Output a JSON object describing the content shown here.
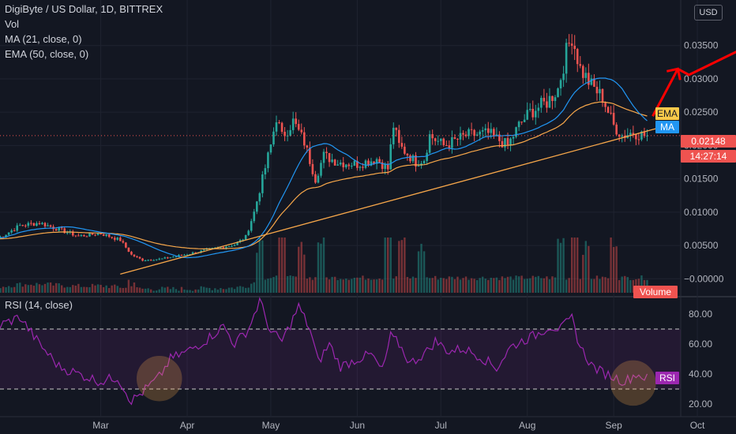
{
  "header": {
    "symbol_line": "DigiByte / US Dollar, 1D, BITTREX",
    "vol_label": "Vol",
    "ma_label": "MA (21, close, 0)",
    "ema_label": "EMA (50, close, 0)"
  },
  "currency_button": "USD",
  "rsi_title": "RSI (14, close)",
  "badges": {
    "ema": "EMA",
    "ma": "MA",
    "price": "0.02148",
    "countdown": "14:27:14",
    "volume": "Volume",
    "rsi": "RSI"
  },
  "colors": {
    "background": "#131722",
    "up_candle": "#26a69a",
    "down_candle": "#ef5350",
    "ma_line": "#2196f3",
    "ema_line": "#f7a74a",
    "rsi_line": "#9c27b0",
    "trendline": "#f7a74a",
    "arrow": "#ff0000",
    "price_badge": "#ef5350",
    "ema_badge": "#f7c94a",
    "ma_badge": "#2196f3",
    "rsi_badge": "#9c27b0"
  },
  "chart_data": [
    {
      "type": "candlestick",
      "name_printed": "DigiByte / US Dollar, 1D, BITTREX",
      "ylim": [
        -0.0005,
        0.0398
      ],
      "y_ticks": [
        "0.03500",
        "0.03000",
        "0.02500",
        "0.02000",
        "0.01500",
        "0.01000",
        "0.00500",
        "−0.00000"
      ],
      "y_tick_values": [
        0.035,
        0.03,
        0.025,
        0.02,
        0.015,
        0.01,
        0.005,
        0.0
      ],
      "x_ticks": [
        "Mar",
        "Apr",
        "May",
        "Jun",
        "Jul",
        "Aug",
        "Sep",
        "Oct"
      ],
      "x_tick_dates": [
        "2020-03-01",
        "2020-04-01",
        "2020-05-01",
        "2020-06-01",
        "2020-07-01",
        "2020-08-01",
        "2020-09-01",
        "2020-10-01"
      ],
      "last_price": 0.02148,
      "trendline": [
        [
          "2020-03-08",
          0.0007
        ],
        [
          "2020-09-22",
          0.0232
        ]
      ],
      "arrow_path": [
        [
          "2020-09-15",
          0.0244
        ],
        [
          "2020-09-24",
          0.0315
        ],
        [
          "2020-09-28",
          0.0306
        ],
        [
          "2020-10-23",
          0.0357
        ]
      ],
      "close_anchors": [
        [
          "2020-01-24",
          0.006
        ],
        [
          "2020-02-01",
          0.008
        ],
        [
          "2020-02-08",
          0.0084
        ],
        [
          "2020-02-15",
          0.0074
        ],
        [
          "2020-02-22",
          0.0064
        ],
        [
          "2020-03-01",
          0.0068
        ],
        [
          "2020-03-08",
          0.0058
        ],
        [
          "2020-03-12",
          0.0036
        ],
        [
          "2020-03-16",
          0.0028
        ],
        [
          "2020-03-23",
          0.003
        ],
        [
          "2020-04-01",
          0.0037
        ],
        [
          "2020-04-10",
          0.0045
        ],
        [
          "2020-04-18",
          0.0051
        ],
        [
          "2020-04-22",
          0.0063
        ],
        [
          "2020-04-25",
          0.01
        ],
        [
          "2020-04-28",
          0.015
        ],
        [
          "2020-05-01",
          0.02
        ],
        [
          "2020-05-03",
          0.0243
        ],
        [
          "2020-05-05",
          0.0213
        ],
        [
          "2020-05-09",
          0.0236
        ],
        [
          "2020-05-13",
          0.0205
        ],
        [
          "2020-05-17",
          0.015
        ],
        [
          "2020-05-20",
          0.0185
        ],
        [
          "2020-05-25",
          0.0175
        ],
        [
          "2020-06-01",
          0.0172
        ],
        [
          "2020-06-08",
          0.018
        ],
        [
          "2020-06-12",
          0.0165
        ],
        [
          "2020-06-14",
          0.023
        ],
        [
          "2020-06-16",
          0.02
        ],
        [
          "2020-06-22",
          0.0175
        ],
        [
          "2020-06-25",
          0.018
        ],
        [
          "2020-06-27",
          0.0215
        ],
        [
          "2020-07-02",
          0.02
        ],
        [
          "2020-07-05",
          0.0205
        ],
        [
          "2020-07-10",
          0.0215
        ],
        [
          "2020-07-18",
          0.0218
        ],
        [
          "2020-07-25",
          0.02
        ],
        [
          "2020-07-29",
          0.023
        ],
        [
          "2020-08-02",
          0.025
        ],
        [
          "2020-08-08",
          0.0265
        ],
        [
          "2020-08-12",
          0.0285
        ],
        [
          "2020-08-15",
          0.034
        ],
        [
          "2020-08-17",
          0.0365
        ],
        [
          "2020-08-20",
          0.0315
        ],
        [
          "2020-08-24",
          0.029
        ],
        [
          "2020-08-28",
          0.0272
        ],
        [
          "2020-09-01",
          0.023
        ],
        [
          "2020-09-04",
          0.0215
        ],
        [
          "2020-09-08",
          0.022
        ],
        [
          "2020-09-12",
          0.0215
        ],
        [
          "2020-09-13",
          0.02148
        ]
      ],
      "volume_range": "0 to 5.7× baseline; spike days ~ Mar 12, Apr 27–May 20, Jun 12–25, Aug 12–20, Sep 1"
    },
    {
      "type": "line",
      "title": "RSI (14, close)",
      "ylim": [
        17,
        92
      ],
      "y_ticks": [
        "80.00",
        "60.00",
        "40.00",
        "20.00"
      ],
      "y_tick_values": [
        80,
        60,
        40,
        20
      ],
      "bands": [
        30,
        70
      ],
      "highlight_circles": [
        [
          "2020-03-22",
          37
        ],
        [
          "2020-09-08",
          34
        ]
      ],
      "values_anchors": [
        [
          "2020-01-24",
          72
        ],
        [
          "2020-02-01",
          78
        ],
        [
          "2020-02-08",
          60
        ],
        [
          "2020-02-15",
          45
        ],
        [
          "2020-02-22",
          40
        ],
        [
          "2020-03-01",
          35
        ],
        [
          "2020-03-07",
          38
        ],
        [
          "2020-03-12",
          22
        ],
        [
          "2020-03-16",
          28
        ],
        [
          "2020-03-22",
          38
        ],
        [
          "2020-03-26",
          50
        ],
        [
          "2020-04-01",
          55
        ],
        [
          "2020-04-08",
          63
        ],
        [
          "2020-04-14",
          72
        ],
        [
          "2020-04-18",
          60
        ],
        [
          "2020-04-23",
          70
        ],
        [
          "2020-04-27",
          89
        ],
        [
          "2020-05-01",
          68
        ],
        [
          "2020-05-05",
          62
        ],
        [
          "2020-05-08",
          73
        ],
        [
          "2020-05-11",
          85
        ],
        [
          "2020-05-15",
          70
        ],
        [
          "2020-05-18",
          48
        ],
        [
          "2020-05-22",
          60
        ],
        [
          "2020-05-26",
          45
        ],
        [
          "2020-06-01",
          50
        ],
        [
          "2020-06-06",
          53
        ],
        [
          "2020-06-10",
          42
        ],
        [
          "2020-06-13",
          65
        ],
        [
          "2020-06-16",
          60
        ],
        [
          "2020-06-20",
          47
        ],
        [
          "2020-06-26",
          55
        ],
        [
          "2020-06-29",
          62
        ],
        [
          "2020-07-04",
          55
        ],
        [
          "2020-07-09",
          57
        ],
        [
          "2020-07-15",
          52
        ],
        [
          "2020-07-21",
          44
        ],
        [
          "2020-07-26",
          58
        ],
        [
          "2020-07-30",
          62
        ],
        [
          "2020-08-04",
          66
        ],
        [
          "2020-08-09",
          72
        ],
        [
          "2020-08-13",
          70
        ],
        [
          "2020-08-17",
          77
        ],
        [
          "2020-08-20",
          58
        ],
        [
          "2020-08-24",
          46
        ],
        [
          "2020-08-27",
          42
        ],
        [
          "2020-09-01",
          38
        ],
        [
          "2020-09-05",
          35
        ],
        [
          "2020-09-09",
          40
        ],
        [
          "2020-09-12",
          38
        ],
        [
          "2020-09-13",
          37
        ]
      ]
    }
  ]
}
